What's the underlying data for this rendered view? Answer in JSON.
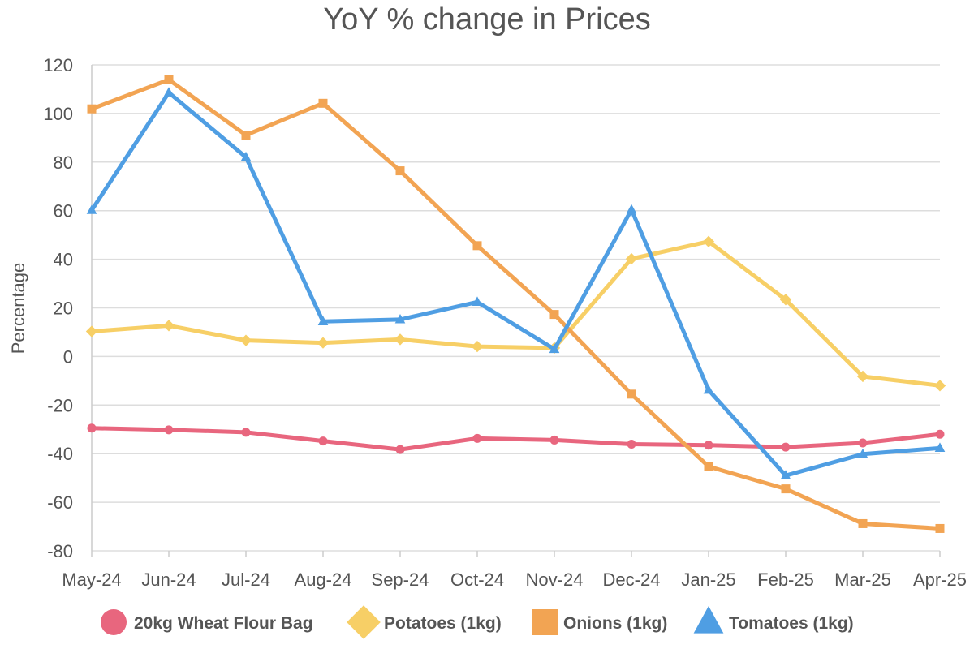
{
  "chart_data": {
    "type": "line",
    "title": "YoY % change in Prices",
    "ylabel": "Percentage",
    "xlabel": "",
    "ylim": [
      -80,
      120
    ],
    "yticks": [
      120,
      100,
      80,
      60,
      40,
      20,
      0,
      -20,
      -40,
      -60,
      -80
    ],
    "categories": [
      "May-24",
      "Jun-24",
      "Jul-24",
      "Aug-24",
      "Sep-24",
      "Oct-24",
      "Nov-24",
      "Dec-24",
      "Jan-25",
      "Feb-25",
      "Mar-25",
      "Apr-25"
    ],
    "grid": true,
    "legend_position": "bottom",
    "series": [
      {
        "name": "20kg Wheat Flour Bag",
        "marker": "circle",
        "color": "#e8667e",
        "values": [
          -29.5,
          -30.2,
          -31.2,
          -34.8,
          -38.3,
          -33.7,
          -34.4,
          -36.1,
          -36.5,
          -37.3,
          -35.6,
          -32.0
        ]
      },
      {
        "name": "Potatoes (1kg)",
        "marker": "diamond",
        "color": "#f7cf66",
        "values": [
          10.3,
          12.7,
          6.6,
          5.6,
          7.0,
          4.1,
          3.5,
          40.2,
          47.3,
          23.4,
          -8.2,
          -12.0
        ]
      },
      {
        "name": "Onions (1kg)",
        "marker": "square",
        "color": "#f2a453",
        "values": [
          101.9,
          113.9,
          91.1,
          104.2,
          76.4,
          45.6,
          17.3,
          -15.5,
          -45.3,
          -54.5,
          -68.8,
          -70.8
        ]
      },
      {
        "name": "Tomatoes (1kg)",
        "marker": "triangle",
        "color": "#4f9ee3",
        "values": [
          60.2,
          108.6,
          82.0,
          14.4,
          15.2,
          22.4,
          3.0,
          60.4,
          -13.8,
          -49.0,
          -40.2,
          -37.7
        ]
      }
    ]
  }
}
